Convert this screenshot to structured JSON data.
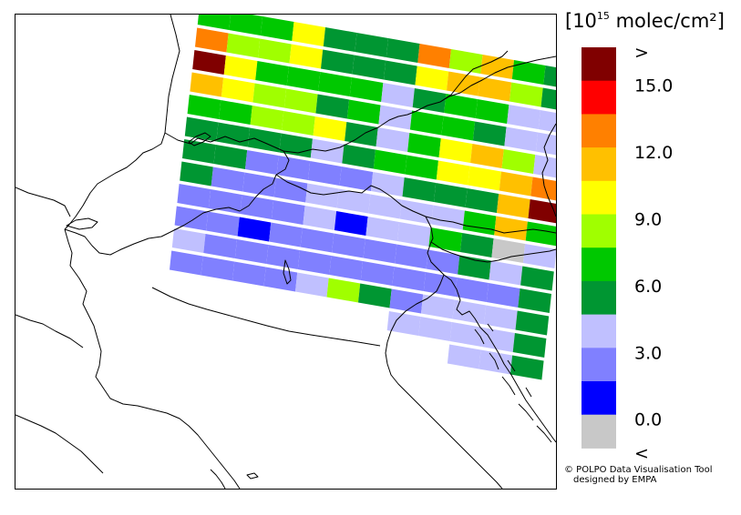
{
  "legend": {
    "unit_prefix": "[10",
    "unit_exp": "15",
    "unit_suffix": " molec/cm²]",
    "classes": [
      {
        "label": ">",
        "color": "#800000"
      },
      {
        "label": "15.0",
        "color": "#ff0000"
      },
      {
        "label": "",
        "color": "#ff8000"
      },
      {
        "label": "12.0",
        "color": "#ffc000"
      },
      {
        "label": "",
        "color": "#ffff00"
      },
      {
        "label": "9.0",
        "color": "#a0ff00"
      },
      {
        "label": "",
        "color": "#00c800"
      },
      {
        "label": "6.0",
        "color": "#009632"
      },
      {
        "label": "",
        "color": "#c0c0ff"
      },
      {
        "label": "3.0",
        "color": "#8080ff"
      },
      {
        "label": "",
        "color": "#0000ff"
      },
      {
        "label": "0.0",
        "color": "#c8c8c8"
      },
      {
        "label": "<",
        "color": ""
      }
    ]
  },
  "credit": {
    "line1": "© POLPO Data Visualisation Tool",
    "line2": "designed by EMPA"
  },
  "swath": {
    "colors": {
      "dr": "#800000",
      "r": "#ff0000",
      "o": "#ff8000",
      "ao": "#ffc000",
      "y": "#ffff00",
      "lg": "#a0ff00",
      "g": "#00c800",
      "dg": "#009632",
      "lb": "#c0c0ff",
      "mb": "#8080ff",
      "b": "#0000ff",
      "gr": "#c8c8c8"
    },
    "scanlines": [
      [
        "g",
        "g",
        "g",
        "y",
        "dg",
        "dg",
        "dg",
        "o",
        "lg",
        "ao",
        "g",
        "dg"
      ],
      [
        "o",
        "lg",
        "lg",
        "y",
        "dg",
        "dg",
        "dg",
        "y",
        "ao",
        "ao",
        "lg",
        "dg"
      ],
      [
        "dr",
        "y",
        "g",
        "g",
        "g",
        "g",
        "lb",
        "dg",
        "g",
        "g",
        "lb",
        "lb"
      ],
      [
        "ao",
        "y",
        "lg",
        "lg",
        "dg",
        "g",
        "lb",
        "g",
        "g",
        "dg",
        "lb",
        "lb"
      ],
      [
        "g",
        "g",
        "lg",
        "lg",
        "y",
        "dg",
        "lb",
        "g",
        "y",
        "ao",
        "lg",
        "lb"
      ],
      [
        "dg",
        "dg",
        "dg",
        "dg",
        "lb",
        "dg",
        "g",
        "g",
        "y",
        "y",
        "ao",
        "o"
      ],
      [
        "dg",
        "dg",
        "mb",
        "mb",
        "mb",
        "mb",
        "lb",
        "dg",
        "dg",
        "dg",
        "ao",
        "dr"
      ],
      [
        "dg",
        "mb",
        "mb",
        "mb",
        "lb",
        "lb",
        "lb",
        "lb",
        "lb",
        "g",
        "ao",
        "g"
      ],
      [
        "mb",
        "mb",
        "mb",
        "mb",
        "lb",
        "b",
        "lb",
        "lb",
        "g",
        "dg",
        "gr",
        "lb"
      ],
      [
        "mb",
        "mb",
        "b",
        "mb",
        "mb",
        "mb",
        "mb",
        "mb",
        "mb",
        "dg",
        "lb",
        "dg"
      ],
      [
        "lb",
        "mb",
        "mb",
        "mb",
        "mb",
        "mb",
        "mb",
        "mb",
        "mb",
        "mb",
        "mb",
        "dg"
      ],
      [
        "mb",
        "mb",
        "mb",
        "mb",
        "lb",
        "lg",
        "dg",
        "mb",
        "lb",
        "lb",
        "lb",
        "dg"
      ],
      [
        "",
        "",
        "",
        "",
        "",
        "",
        "",
        "lb",
        "lb",
        "lb",
        "lb",
        "dg"
      ],
      [
        "",
        "",
        "",
        "",
        "",
        "",
        "",
        "",
        "",
        "lb",
        "lb",
        "dg"
      ]
    ]
  }
}
